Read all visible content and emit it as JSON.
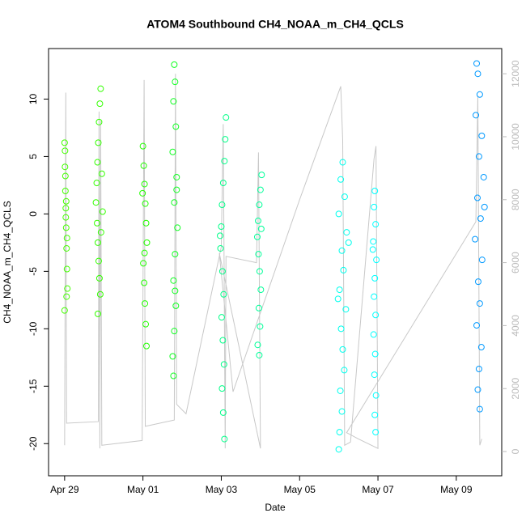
{
  "chart_data": {
    "type": "scatter",
    "title": "ATOM4 Southbound CH4_NOAA_m_CH4_QCLS",
    "x_label": "Date",
    "y_label": "CH4_NOAA_m_CH4_QCLS",
    "xlim": [
      -0.41,
      11.16
    ],
    "xticks": [
      {
        "value": 0,
        "label": "Apr 29"
      },
      {
        "value": 2,
        "label": "May 01"
      },
      {
        "value": 4,
        "label": "May 03"
      },
      {
        "value": 6,
        "label": "May 05"
      },
      {
        "value": 8,
        "label": "May 07"
      },
      {
        "value": 10,
        "label": "May 09"
      }
    ],
    "ylim": [
      -22.8,
      14.4
    ],
    "yticks": [
      -20,
      -15,
      -10,
      -5,
      0,
      5,
      10
    ],
    "y2lim": [
      -770,
      12800
    ],
    "y2ticks": [
      0,
      2000,
      4000,
      6000,
      8000,
      10000,
      12000
    ],
    "series": [
      {
        "color": "#44ff00",
        "x": [
          0.0,
          0.01,
          0.02,
          0.03,
          0.04,
          0.05,
          0.06,
          0.07,
          0.0,
          0.02,
          0.04,
          0.06,
          0.01,
          0.03,
          0.05
        ],
        "values": [
          6.2,
          4.1,
          2.0,
          0.5,
          -1.2,
          -3.0,
          -4.8,
          -6.5,
          -8.4,
          3.3,
          1.1,
          -2.1,
          5.5,
          -0.3,
          -7.2
        ]
      },
      {
        "color": "#33ff00",
        "x": [
          0.92,
          0.9,
          0.88,
          0.86,
          0.84,
          0.82,
          0.8,
          0.83,
          0.85,
          0.87,
          0.89,
          0.91,
          0.85,
          0.95,
          0.93,
          0.97
        ],
        "values": [
          10.9,
          9.6,
          8.0,
          6.2,
          4.5,
          2.7,
          1.0,
          -0.8,
          -2.5,
          -4.1,
          -5.6,
          -7.0,
          -8.7,
          3.5,
          -1.6,
          0.2
        ]
      },
      {
        "color": "#22ff00",
        "x": [
          2.0,
          2.02,
          2.04,
          2.06,
          2.08,
          2.1,
          2.01,
          2.03,
          2.05,
          2.07,
          2.09,
          1.99,
          2.04
        ],
        "values": [
          5.9,
          4.2,
          2.6,
          0.9,
          -0.8,
          -2.5,
          -4.3,
          -6.0,
          -7.8,
          -9.6,
          -11.5,
          1.8,
          -3.4
        ]
      },
      {
        "color": "#11ff22",
        "x": [
          2.8,
          2.82,
          2.78,
          2.84,
          2.76,
          2.86,
          2.8,
          2.88,
          2.82,
          2.78,
          2.84,
          2.8,
          2.76,
          2.78,
          2.86,
          2.82
        ],
        "values": [
          13.0,
          11.5,
          9.8,
          7.6,
          5.4,
          3.2,
          1.0,
          -1.2,
          -3.5,
          -5.8,
          -8.0,
          -10.2,
          -12.4,
          -14.1,
          2.1,
          -6.7
        ]
      },
      {
        "color": "#00ff88",
        "x": [
          4.12,
          4.1,
          4.08,
          4.05,
          4.02,
          4.0,
          3.98,
          4.03,
          4.06,
          4.01,
          4.04,
          4.07,
          4.02,
          4.05,
          4.08,
          3.97
        ],
        "values": [
          8.4,
          6.5,
          4.6,
          2.7,
          0.8,
          -1.1,
          -3.0,
          -5.0,
          -7.0,
          -9.0,
          -11.0,
          -13.1,
          -15.2,
          -17.3,
          -19.6,
          -1.9
        ]
      },
      {
        "color": "#00ff99",
        "x": [
          5.03,
          5.0,
          4.97,
          4.94,
          4.92,
          4.95,
          4.98,
          5.01,
          4.96,
          4.99,
          4.93,
          4.97,
          5.02
        ],
        "values": [
          3.4,
          2.1,
          0.8,
          -0.6,
          -2.0,
          -3.5,
          -5.0,
          -6.6,
          -8.2,
          -9.8,
          -11.4,
          -12.3,
          -1.3
        ]
      },
      {
        "color": "#00ffee",
        "x": [
          7.1,
          7.05,
          7.15,
          7.0,
          7.2,
          7.08,
          7.12,
          7.02,
          7.18,
          7.06,
          7.1,
          7.14,
          7.04,
          7.08,
          7.02,
          7.0,
          7.25,
          6.98
        ],
        "values": [
          4.5,
          3.0,
          1.5,
          0.0,
          -1.6,
          -3.2,
          -4.9,
          -6.6,
          -8.3,
          -10.0,
          -11.8,
          -13.6,
          -15.4,
          -17.2,
          -19.0,
          -20.5,
          -2.5,
          -7.4
        ]
      },
      {
        "color": "#00ffff",
        "x": [
          7.92,
          7.9,
          7.94,
          7.88,
          7.96,
          7.92,
          7.9,
          7.94,
          7.89,
          7.93,
          7.91,
          7.95,
          7.92,
          7.94,
          7.87
        ],
        "values": [
          2.0,
          0.6,
          -0.9,
          -2.4,
          -4.0,
          -5.6,
          -7.2,
          -8.8,
          -10.5,
          -12.2,
          -14.0,
          -15.8,
          -17.5,
          -19.0,
          -3.1
        ]
      },
      {
        "color": "#0099ff",
        "x": [
          10.52,
          10.55,
          10.6,
          10.5,
          10.65,
          10.58,
          10.7,
          10.54,
          10.62,
          10.48,
          10.66,
          10.56,
          10.6,
          10.52,
          10.64,
          10.58,
          10.55,
          10.6,
          10.72
        ],
        "values": [
          13.1,
          12.2,
          10.4,
          8.6,
          6.8,
          5.0,
          3.2,
          1.4,
          -0.4,
          -2.2,
          -4.0,
          -5.9,
          -7.8,
          -9.7,
          -11.6,
          -13.5,
          -15.3,
          -17.0,
          0.6
        ]
      },
      {
        "color": "#c8c8c8",
        "axis": "y2",
        "style": "line",
        "x": [
          0.0,
          0.03,
          0.05,
          0.86,
          0.88,
          0.9,
          0.92,
          0.95,
          1.98,
          2.03,
          2.06,
          2.8,
          2.83,
          2.86,
          3.1,
          4.0,
          4.05,
          4.1,
          4.12,
          4.9,
          4.95,
          5.0,
          3.95,
          4.3,
          6.0,
          7.05,
          7.1,
          7.15,
          7.3,
          7.9,
          7.95,
          8.0,
          7.5,
          7.2,
          10.5,
          10.55,
          10.6,
          10.65
        ],
        "values": [
          200,
          11400,
          900,
          950,
          10800,
          100,
          10500,
          200,
          350,
          11800,
          800,
          1000,
          12000,
          1500,
          1200,
          6500,
          10400,
          100,
          6200,
          6000,
          9500,
          100,
          6300,
          1900,
          8000,
          11600,
          9900,
          200,
          300,
          9300,
          9700,
          100,
          400,
          600,
          7300,
          11300,
          200,
          400
        ]
      }
    ]
  }
}
